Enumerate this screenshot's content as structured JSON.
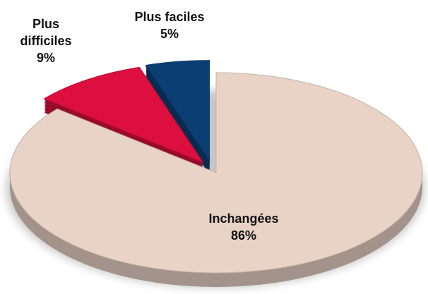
{
  "chart_data": {
    "type": "pie",
    "categories": [
      "Inchangées",
      "Plus difficiles",
      "Plus faciles"
    ],
    "values": [
      86,
      9,
      5
    ],
    "value_labels": [
      "86%",
      "9%",
      "5%"
    ],
    "colors": [
      "#e9d2c6",
      "#dc0f3e",
      "#0b3f74"
    ]
  }
}
